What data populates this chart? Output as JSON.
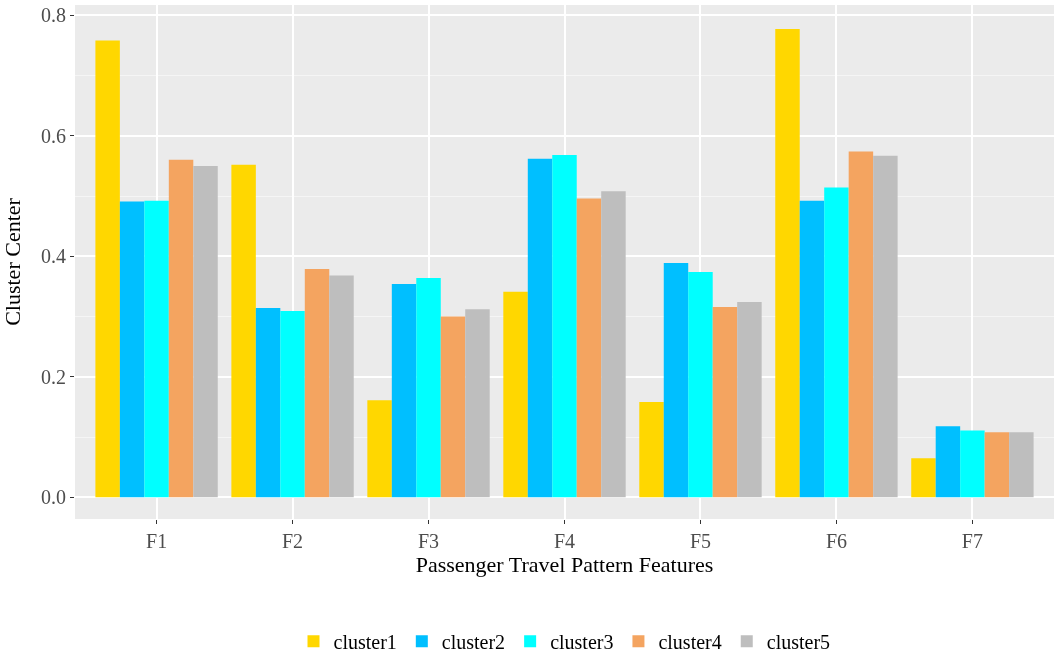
{
  "chart_data": {
    "type": "bar",
    "xlabel": "Passenger Travel Pattern Features",
    "ylabel": "Cluster Center",
    "categories": [
      "F1",
      "F2",
      "F3",
      "F4",
      "F5",
      "F6",
      "F7"
    ],
    "series": [
      {
        "name": "cluster1",
        "color": "#ffd700",
        "values": [
          0.758,
          0.552,
          0.161,
          0.341,
          0.158,
          0.777,
          0.065
        ]
      },
      {
        "name": "cluster2",
        "color": "#00bfff",
        "values": [
          0.491,
          0.314,
          0.354,
          0.562,
          0.389,
          0.492,
          0.118
        ]
      },
      {
        "name": "cluster3",
        "color": "#00ffff",
        "values": [
          0.492,
          0.309,
          0.364,
          0.568,
          0.374,
          0.514,
          0.111
        ]
      },
      {
        "name": "cluster4",
        "color": "#f4a460",
        "values": [
          0.56,
          0.379,
          0.3,
          0.496,
          0.316,
          0.574,
          0.108
        ]
      },
      {
        "name": "cluster5",
        "color": "#bebebe",
        "values": [
          0.55,
          0.368,
          0.312,
          0.508,
          0.324,
          0.567,
          0.108
        ]
      }
    ],
    "ylim": [
      -0.036,
      0.817
    ],
    "yticks": [
      {
        "value": 0,
        "label": "0.0"
      },
      0.2,
      0.4,
      0.6,
      0.8
    ],
    "grid": true,
    "legend": "bottom"
  }
}
